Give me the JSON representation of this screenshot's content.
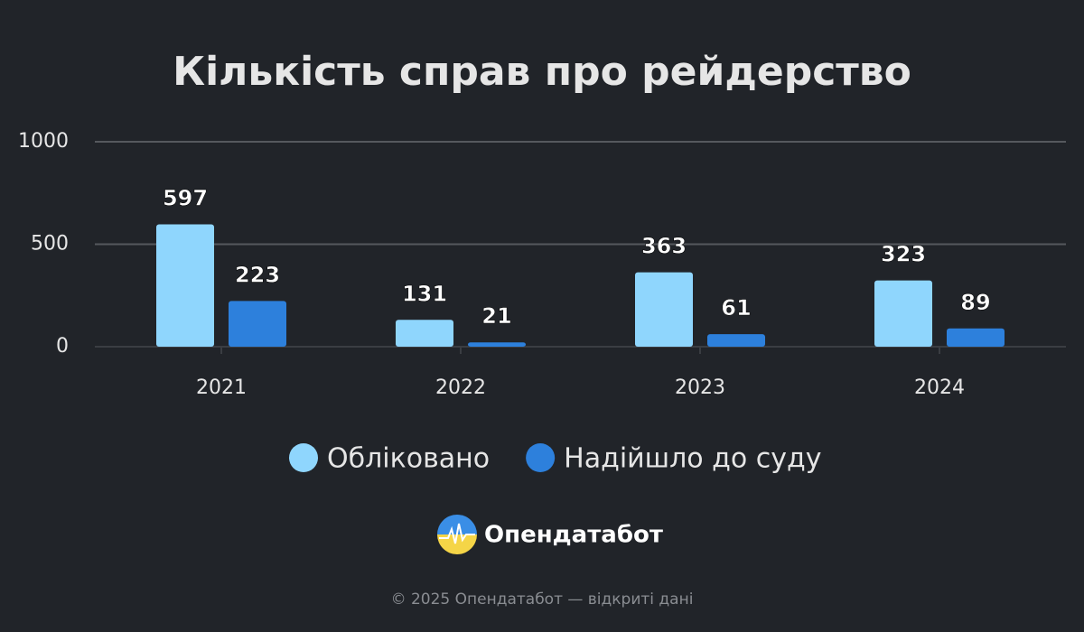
{
  "chart_data": {
    "type": "bar",
    "title": "Кількість справ про рейдерство",
    "categories": [
      "2021",
      "2022",
      "2023",
      "2024"
    ],
    "series": [
      {
        "name": "Обліковано",
        "color": "#8fd6fd",
        "values": [
          597,
          131,
          363,
          323
        ]
      },
      {
        "name": "Надійшло до суду",
        "color": "#2d80dc",
        "values": [
          223,
          21,
          61,
          89
        ]
      }
    ],
    "ylim": [
      0,
      1000
    ],
    "yticks": [
      0,
      500,
      1000
    ],
    "grid": true,
    "legend": "bottom",
    "brand": "Опендатабот",
    "footer": "© 2025 Опендатабот — відкриті дані"
  }
}
